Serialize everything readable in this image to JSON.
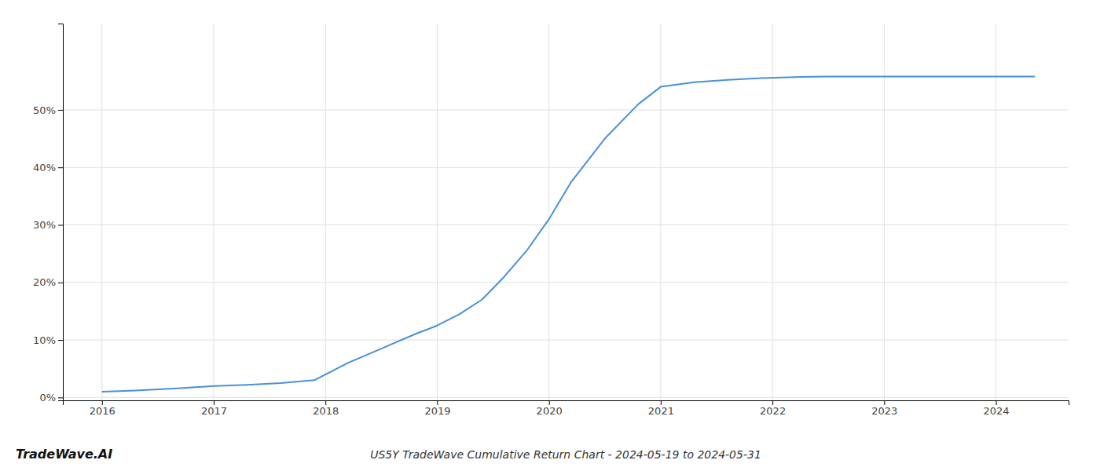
{
  "chart_data": {
    "type": "line",
    "title": "US5Y TradeWave Cumulative Return Chart - 2024-05-19 to 2024-05-31",
    "annotations": [
      "TradeWave.AI"
    ],
    "color": "#4a90d9",
    "grid": true,
    "x": [
      2016.0,
      2016.3,
      2016.7,
      2017.0,
      2017.3,
      2017.6,
      2017.9,
      2018.2,
      2018.5,
      2018.8,
      2019.0,
      2019.2,
      2019.4,
      2019.6,
      2019.8,
      2020.0,
      2020.2,
      2020.5,
      2020.8,
      2021.0,
      2021.3,
      2021.6,
      2021.9,
      2022.2,
      2022.5,
      2022.8,
      2023.1,
      2023.4,
      2023.7,
      2024.0,
      2024.35
    ],
    "values": [
      0.01,
      0.012,
      0.016,
      0.02,
      0.022,
      0.025,
      0.03,
      0.06,
      0.085,
      0.11,
      0.125,
      0.145,
      0.17,
      0.21,
      0.255,
      0.31,
      0.375,
      0.45,
      0.51,
      0.54,
      0.548,
      0.552,
      0.555,
      0.557,
      0.558,
      0.558,
      0.558,
      0.558,
      0.558,
      0.558,
      0.558
    ],
    "xlim": [
      2015.65,
      2024.65
    ],
    "ylim": [
      -0.005,
      0.65
    ],
    "xticks": [
      2016,
      2017,
      2018,
      2019,
      2020,
      2021,
      2022,
      2023,
      2024
    ],
    "yticks": [
      {
        "value": 0.0,
        "label": "0%"
      },
      {
        "value": 0.1,
        "label": "10%"
      },
      {
        "value": 0.2,
        "label": "20%"
      },
      {
        "value": 0.3,
        "label": "30%"
      },
      {
        "value": 0.4,
        "label": "40%"
      },
      {
        "value": 0.5,
        "label": "50%"
      }
    ]
  }
}
